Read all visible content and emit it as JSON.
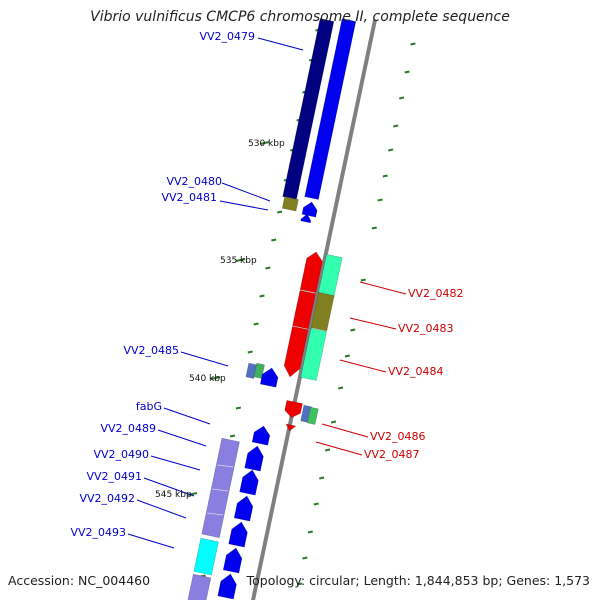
{
  "title": "Vibrio vulnificus CMCP6 chromosome II, complete sequence",
  "accession": "Accession: NC_004460",
  "topology": "Topology: circular; Length: 1,844,853 bp; Genes: 1,573",
  "kbp_labels": [
    "530 kbp",
    "535 kbp",
    "540 kbp",
    "545 kbp"
  ],
  "genes_left": [
    "VV2_0479",
    "VV2_0480",
    "VV2_0481",
    "VV2_0485",
    "fabG",
    "VV2_0489",
    "VV2_0490",
    "VV2_0491",
    "VV2_0492",
    "VV2_0493"
  ],
  "genes_right": [
    "VV2_0482",
    "VV2_0483",
    "VV2_0484",
    "VV2_0486",
    "VV2_0487"
  ],
  "colors": {
    "forward_label": "#0000cc",
    "reverse_label": "#cc0000",
    "backbone": "#808080",
    "tick": "#2a7a2a",
    "navy": "#000080",
    "blue": "#0000ee",
    "red": "#ee0000",
    "aqua": "#33ffb0",
    "olive": "#808020",
    "lavender": "#8a7fe0",
    "cyan": "#00ffff"
  }
}
